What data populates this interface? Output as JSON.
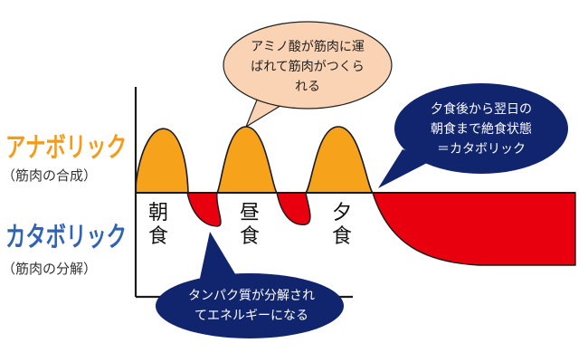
{
  "labels": {
    "anabolic_title": "アナボリック",
    "anabolic_sub": "（筋肉の合成）",
    "catabolic_title": "カタボリック",
    "catabolic_sub": "（筋肉の分解）"
  },
  "meals": [
    {
      "line1": "朝",
      "line2": "食"
    },
    {
      "line1": "昼",
      "line2": "食"
    },
    {
      "line1": "夕",
      "line2": "食"
    }
  ],
  "bubbles": {
    "amino_acid": [
      "アミノ酸が筋肉に運",
      "ばれて筋肉がつくら",
      "れる"
    ],
    "overnight": [
      "夕食後から翌日の",
      "朝食まで絶食状態",
      "＝カタボリック"
    ],
    "protein_breakdown": [
      "タンパク質が分解され",
      "てエネルギーになる"
    ]
  },
  "colors": {
    "anabolic_fill": "#F7A21B",
    "catabolic_fill": "#E8000F",
    "anabolic_text": "#F59B1A",
    "catabolic_text": "#2E63B5",
    "peach_bubble": "#FAD3B4",
    "navy_bubble": "#11256F",
    "axis": "#1A1A1A"
  }
}
